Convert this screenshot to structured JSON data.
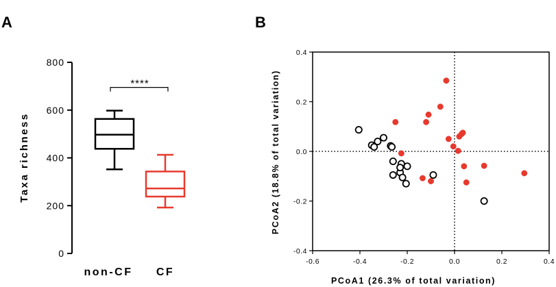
{
  "chart_data": [
    {
      "type": "box",
      "panel_label": "A",
      "ylabel": "Taxa richness",
      "ylim": [
        0,
        800
      ],
      "yticks": [
        "0",
        "200",
        "400",
        "600",
        "800"
      ],
      "categories": [
        "non-CF",
        "CF"
      ],
      "boxes": [
        {
          "category": "non-CF",
          "color": "#000000",
          "min": 352,
          "q1": 438,
          "median": 497,
          "q3": 563,
          "max": 598
        },
        {
          "category": "CF",
          "color": "#e8392e",
          "min": 192,
          "q1": 238,
          "median": 272,
          "q3": 343,
          "max": 413
        }
      ],
      "significance": {
        "label": "****",
        "between": [
          "non-CF",
          "CF"
        ],
        "value": 695
      }
    },
    {
      "type": "scatter",
      "panel_label": "B",
      "xlabel": "PCoA1 (26.3% of total variation)",
      "ylabel": "PCoA2 (18.8% of total variation)",
      "xlim": [
        -0.6,
        0.4
      ],
      "ylim": [
        -0.4,
        0.4
      ],
      "xticks": [
        "-0.6",
        "-0.4",
        "-0.2",
        "0.0",
        "0.2",
        "0.4"
      ],
      "yticks": [
        "-0.4",
        "-0.2",
        "0.0",
        "0.2",
        "0.4"
      ],
      "reference_lines": {
        "x": 0,
        "y": 0,
        "style": "dotted"
      },
      "series": [
        {
          "marker": "open-circle",
          "color": "#000000",
          "points": [
            [
              -0.405,
              0.087
            ],
            [
              -0.35,
              0.025
            ],
            [
              -0.34,
              0.018
            ],
            [
              -0.325,
              0.04
            ],
            [
              -0.3,
              0.055
            ],
            [
              -0.27,
              0.022
            ],
            [
              -0.265,
              0.018
            ],
            [
              -0.26,
              -0.04
            ],
            [
              -0.26,
              -0.095
            ],
            [
              -0.23,
              -0.085
            ],
            [
              -0.225,
              -0.05
            ],
            [
              -0.22,
              -0.105
            ],
            [
              -0.205,
              -0.13
            ],
            [
              -0.2,
              -0.06
            ],
            [
              -0.23,
              -0.065
            ],
            [
              -0.09,
              -0.095
            ],
            [
              0.125,
              -0.2
            ]
          ]
        },
        {
          "marker": "filled-circle",
          "color": "#e8392e",
          "points": [
            [
              -0.25,
              0.118
            ],
            [
              -0.225,
              -0.008
            ],
            [
              -0.135,
              -0.108
            ],
            [
              -0.12,
              0.118
            ],
            [
              -0.11,
              0.148
            ],
            [
              -0.1,
              -0.12
            ],
            [
              -0.06,
              0.18
            ],
            [
              -0.035,
              0.285
            ],
            [
              -0.025,
              0.05
            ],
            [
              -0.005,
              0.02
            ],
            [
              0.015,
              0.002
            ],
            [
              0.02,
              0.06
            ],
            [
              0.03,
              0.07
            ],
            [
              0.035,
              0.075
            ],
            [
              0.04,
              -0.06
            ],
            [
              0.05,
              -0.125
            ],
            [
              0.125,
              -0.058
            ],
            [
              0.295,
              -0.088
            ]
          ]
        }
      ]
    }
  ]
}
